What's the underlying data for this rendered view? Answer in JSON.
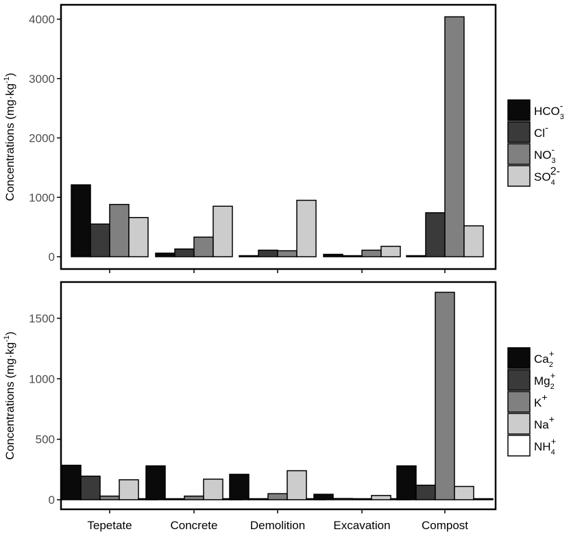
{
  "chart_data": [
    {
      "type": "bar",
      "categories": [
        "Tepetate",
        "Concrete",
        "Demolition",
        "Excavation",
        "Compost"
      ],
      "ylabel": "Concentrations (mg·kg-1)",
      "ylim": [
        0,
        4000
      ],
      "yticks": [
        0,
        1000,
        2000,
        3000,
        4000
      ],
      "grid": false,
      "legend_position": "right",
      "series": [
        {
          "name": "HCO3-",
          "color": "#0a0a0a",
          "values": [
            1210,
            60,
            0,
            40,
            0
          ]
        },
        {
          "name": "Cl-",
          "color": "#3a3a3a",
          "values": [
            550,
            130,
            110,
            10,
            740
          ]
        },
        {
          "name": "NO3-",
          "color": "#808080",
          "values": [
            880,
            330,
            100,
            110,
            4040
          ]
        },
        {
          "name": "SO42-",
          "color": "#cccccc",
          "values": [
            660,
            850,
            950,
            175,
            520
          ]
        }
      ]
    },
    {
      "type": "bar",
      "categories": [
        "Tepetate",
        "Concrete",
        "Demolition",
        "Excavation",
        "Compost"
      ],
      "ylabel": "Concentrations (mg·kg-1)",
      "ylim": [
        0,
        1750
      ],
      "yticks": [
        0,
        500,
        1000,
        1500
      ],
      "grid": false,
      "legend_position": "right",
      "series": [
        {
          "name": "Ca2+",
          "color": "#0a0a0a",
          "values": [
            285,
            280,
            210,
            45,
            280
          ]
        },
        {
          "name": "Mg2+",
          "color": "#3a3a3a",
          "values": [
            195,
            0,
            0,
            10,
            120
          ]
        },
        {
          "name": "K+",
          "color": "#808080",
          "values": [
            30,
            30,
            50,
            5,
            1715
          ]
        },
        {
          "name": "Na+",
          "color": "#cccccc",
          "values": [
            165,
            170,
            240,
            35,
            110
          ]
        },
        {
          "name": "NH4+",
          "color": "#ffffff",
          "values": [
            0,
            0,
            0,
            0,
            0
          ]
        }
      ]
    }
  ]
}
